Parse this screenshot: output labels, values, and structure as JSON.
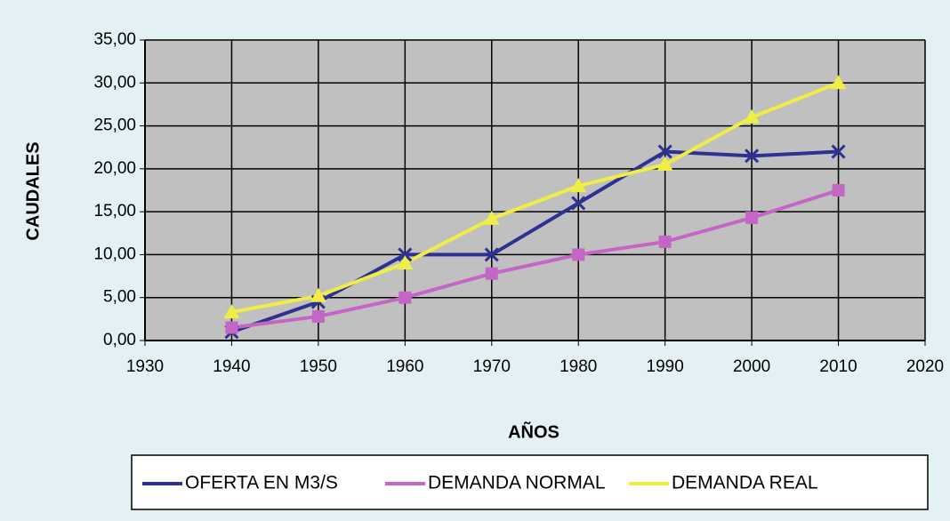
{
  "chart_data": {
    "type": "line",
    "x_label": "AÑOS",
    "y_label": "CAUDALES",
    "x": [
      1940,
      1950,
      1960,
      1970,
      1980,
      1990,
      2000,
      2010
    ],
    "series": [
      {
        "name": "OFERTA EN M3/S",
        "color": "#2e3192",
        "values": [
          1.0,
          4.5,
          10.0,
          10.0,
          16.0,
          22.0,
          21.5,
          22.0
        ]
      },
      {
        "name": "DEMANDA NORMAL",
        "color": "#c466c4",
        "values": [
          1.5,
          2.8,
          5.0,
          7.8,
          10.0,
          11.5,
          14.3,
          17.5
        ]
      },
      {
        "name": "DEMANDA REAL",
        "color": "#eeee44",
        "values": [
          3.3,
          5.2,
          9.0,
          14.2,
          18.0,
          20.5,
          26.0,
          30.0
        ]
      }
    ],
    "xlim": [
      1930,
      2020
    ],
    "xticks": [
      1930,
      1940,
      1950,
      1960,
      1970,
      1980,
      1990,
      2000,
      2010,
      2020
    ],
    "ylim": [
      0,
      35
    ],
    "yticks": [
      {
        "value": 0,
        "label": "0,00"
      },
      {
        "value": 5,
        "label": "5,00"
      },
      {
        "value": 10,
        "label": "10,00"
      },
      {
        "value": 15,
        "label": "15,00"
      },
      {
        "value": 20,
        "label": "20,00"
      },
      {
        "value": 25,
        "label": "25,00"
      },
      {
        "value": 30,
        "label": "30,00"
      },
      {
        "value": 35,
        "label": "35,00"
      }
    ],
    "grid": true,
    "legend": "bottom"
  }
}
